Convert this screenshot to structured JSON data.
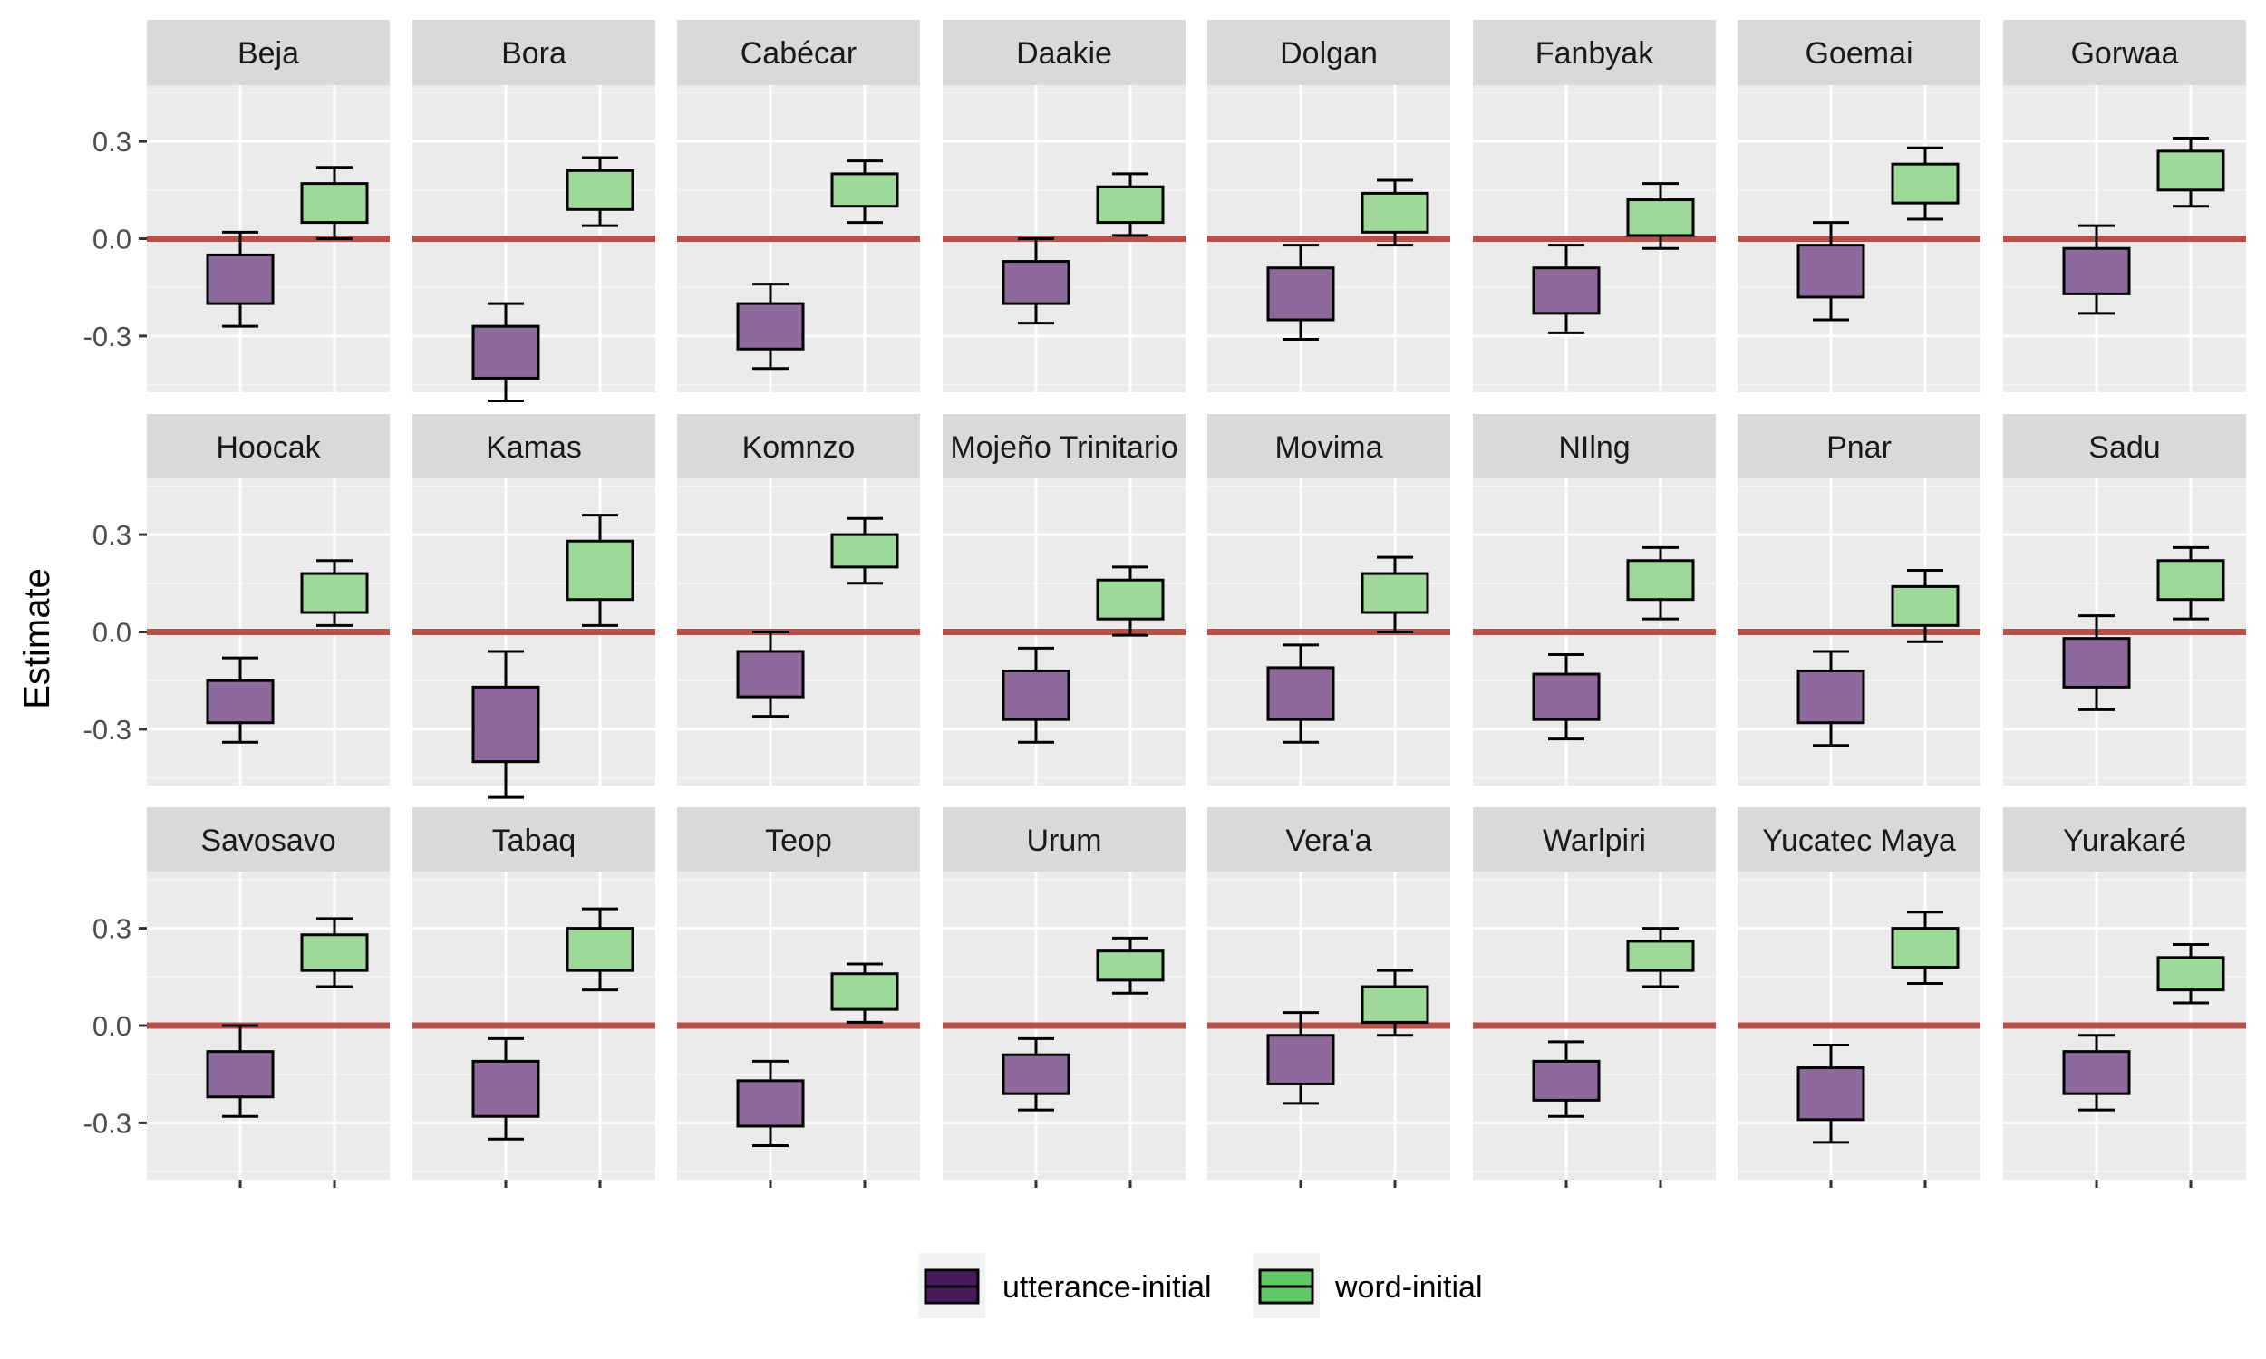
{
  "chart_data": {
    "type": "boxplot",
    "facet_wrap": "language",
    "ylabel": "Estimate",
    "xlabel": "",
    "ylim": [
      -0.6,
      0.6
    ],
    "yticks": [
      -0.3,
      0.0,
      0.3
    ],
    "ytick_labels": [
      "-0.3",
      "0.0",
      "0.3"
    ],
    "reference_line": {
      "y": 0.0,
      "color": "#b5504b"
    },
    "grid": true,
    "legend_position": "bottom",
    "series": [
      {
        "name": "utterance-initial",
        "color": "#4a1a5e"
      },
      {
        "name": "word-initial",
        "color": "#5ec962"
      }
    ],
    "panels": [
      {
        "label": "Beja",
        "utterance": {
          "min": -0.27,
          "q1": -0.2,
          "q3": -0.05,
          "max": 0.02
        },
        "word": {
          "min": 0.0,
          "q1": 0.05,
          "q3": 0.17,
          "max": 0.22
        }
      },
      {
        "label": "Bora",
        "utterance": {
          "min": -0.5,
          "q1": -0.43,
          "q3": -0.27,
          "max": -0.2
        },
        "word": {
          "min": 0.04,
          "q1": 0.09,
          "q3": 0.21,
          "max": 0.25
        }
      },
      {
        "label": "Cabécar",
        "utterance": {
          "min": -0.4,
          "q1": -0.34,
          "q3": -0.2,
          "max": -0.14
        },
        "word": {
          "min": 0.05,
          "q1": 0.1,
          "q3": 0.2,
          "max": 0.24
        }
      },
      {
        "label": "Daakie",
        "utterance": {
          "min": -0.26,
          "q1": -0.2,
          "q3": -0.07,
          "max": 0.0
        },
        "word": {
          "min": 0.01,
          "q1": 0.05,
          "q3": 0.16,
          "max": 0.2
        }
      },
      {
        "label": "Dolgan",
        "utterance": {
          "min": -0.31,
          "q1": -0.25,
          "q3": -0.09,
          "max": -0.02
        },
        "word": {
          "min": -0.02,
          "q1": 0.02,
          "q3": 0.14,
          "max": 0.18
        }
      },
      {
        "label": "Fanbyak",
        "utterance": {
          "min": -0.29,
          "q1": -0.23,
          "q3": -0.09,
          "max": -0.02
        },
        "word": {
          "min": -0.03,
          "q1": 0.01,
          "q3": 0.12,
          "max": 0.17
        }
      },
      {
        "label": "Goemai",
        "utterance": {
          "min": -0.25,
          "q1": -0.18,
          "q3": -0.02,
          "max": 0.05
        },
        "word": {
          "min": 0.06,
          "q1": 0.11,
          "q3": 0.23,
          "max": 0.28
        }
      },
      {
        "label": "Gorwaa",
        "utterance": {
          "min": -0.23,
          "q1": -0.17,
          "q3": -0.03,
          "max": 0.04
        },
        "word": {
          "min": 0.1,
          "q1": 0.15,
          "q3": 0.27,
          "max": 0.31
        }
      },
      {
        "label": "Hoocak",
        "utterance": {
          "min": -0.34,
          "q1": -0.28,
          "q3": -0.15,
          "max": -0.08
        },
        "word": {
          "min": 0.02,
          "q1": 0.06,
          "q3": 0.18,
          "max": 0.22
        }
      },
      {
        "label": "Kamas",
        "utterance": {
          "min": -0.51,
          "q1": -0.4,
          "q3": -0.17,
          "max": -0.06
        },
        "word": {
          "min": 0.02,
          "q1": 0.1,
          "q3": 0.28,
          "max": 0.36
        }
      },
      {
        "label": "Komnzo",
        "utterance": {
          "min": -0.26,
          "q1": -0.2,
          "q3": -0.06,
          "max": 0.0
        },
        "word": {
          "min": 0.15,
          "q1": 0.2,
          "q3": 0.3,
          "max": 0.35
        }
      },
      {
        "label": "Mojeño Trinitario",
        "utterance": {
          "min": -0.34,
          "q1": -0.27,
          "q3": -0.12,
          "max": -0.05
        },
        "word": {
          "min": -0.01,
          "q1": 0.04,
          "q3": 0.16,
          "max": 0.2
        }
      },
      {
        "label": "Movima",
        "utterance": {
          "min": -0.34,
          "q1": -0.27,
          "q3": -0.11,
          "max": -0.04
        },
        "word": {
          "min": 0.0,
          "q1": 0.06,
          "q3": 0.18,
          "max": 0.23
        }
      },
      {
        "label": "NIlng",
        "utterance": {
          "min": -0.33,
          "q1": -0.27,
          "q3": -0.13,
          "max": -0.07
        },
        "word": {
          "min": 0.04,
          "q1": 0.1,
          "q3": 0.22,
          "max": 0.26
        }
      },
      {
        "label": "Pnar",
        "utterance": {
          "min": -0.35,
          "q1": -0.28,
          "q3": -0.12,
          "max": -0.06
        },
        "word": {
          "min": -0.03,
          "q1": 0.02,
          "q3": 0.14,
          "max": 0.19
        }
      },
      {
        "label": "Sadu",
        "utterance": {
          "min": -0.24,
          "q1": -0.17,
          "q3": -0.02,
          "max": 0.05
        },
        "word": {
          "min": 0.04,
          "q1": 0.1,
          "q3": 0.22,
          "max": 0.26
        }
      },
      {
        "label": "Savosavo",
        "utterance": {
          "min": -0.28,
          "q1": -0.22,
          "q3": -0.08,
          "max": 0.0
        },
        "word": {
          "min": 0.12,
          "q1": 0.17,
          "q3": 0.28,
          "max": 0.33
        }
      },
      {
        "label": "Tabaq",
        "utterance": {
          "min": -0.35,
          "q1": -0.28,
          "q3": -0.11,
          "max": -0.04
        },
        "word": {
          "min": 0.11,
          "q1": 0.17,
          "q3": 0.3,
          "max": 0.36
        }
      },
      {
        "label": "Teop",
        "utterance": {
          "min": -0.37,
          "q1": -0.31,
          "q3": -0.17,
          "max": -0.11
        },
        "word": {
          "min": 0.01,
          "q1": 0.05,
          "q3": 0.16,
          "max": 0.19
        }
      },
      {
        "label": "Urum",
        "utterance": {
          "min": -0.26,
          "q1": -0.21,
          "q3": -0.09,
          "max": -0.04
        },
        "word": {
          "min": 0.1,
          "q1": 0.14,
          "q3": 0.23,
          "max": 0.27
        }
      },
      {
        "label": "Vera'a",
        "utterance": {
          "min": -0.24,
          "q1": -0.18,
          "q3": -0.03,
          "max": 0.04
        },
        "word": {
          "min": -0.03,
          "q1": 0.01,
          "q3": 0.12,
          "max": 0.17
        }
      },
      {
        "label": "Warlpiri",
        "utterance": {
          "min": -0.28,
          "q1": -0.23,
          "q3": -0.11,
          "max": -0.05
        },
        "word": {
          "min": 0.12,
          "q1": 0.17,
          "q3": 0.26,
          "max": 0.3
        }
      },
      {
        "label": "Yucatec Maya",
        "utterance": {
          "min": -0.36,
          "q1": -0.29,
          "q3": -0.13,
          "max": -0.06
        },
        "word": {
          "min": 0.13,
          "q1": 0.18,
          "q3": 0.3,
          "max": 0.35
        }
      },
      {
        "label": "Yurakaré",
        "utterance": {
          "min": -0.26,
          "q1": -0.21,
          "q3": -0.08,
          "max": -0.03
        },
        "word": {
          "min": 0.07,
          "q1": 0.11,
          "q3": 0.21,
          "max": 0.25
        }
      }
    ]
  }
}
